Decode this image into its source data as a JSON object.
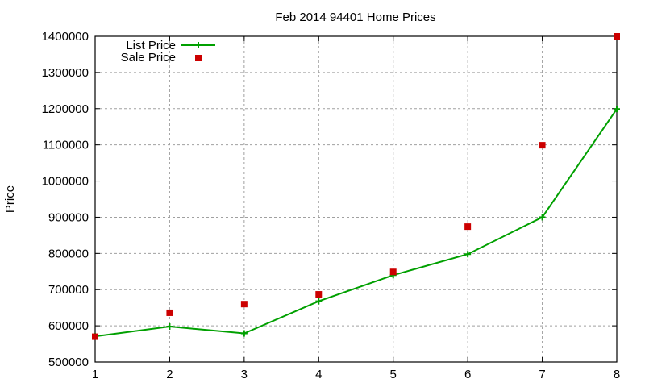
{
  "chart_data": {
    "type": "line",
    "title": "Feb 2014 94401 Home Prices",
    "xlabel": "",
    "ylabel": "Price",
    "x": [
      1,
      2,
      3,
      4,
      5,
      6,
      7,
      8
    ],
    "xlim": [
      1,
      8
    ],
    "ylim": [
      500000,
      1400000
    ],
    "xticks": [
      "1",
      "2",
      "3",
      "4",
      "5",
      "6",
      "7",
      "8"
    ],
    "yticks": [
      "500000",
      "600000",
      "700000",
      "800000",
      "900000",
      "1000000",
      "1100000",
      "1200000",
      "1300000",
      "1400000"
    ],
    "grid": true,
    "legend_position": "top-left",
    "series": [
      {
        "name": "List Price",
        "style": "linespoints",
        "marker": "plus",
        "color": "#00a000",
        "values": [
          571000,
          598000,
          579000,
          668000,
          740000,
          798000,
          900000,
          1199000
        ]
      },
      {
        "name": "Sale Price",
        "style": "points",
        "marker": "filled-square",
        "color": "#cc0000",
        "values": [
          570000,
          636000,
          660000,
          687000,
          749000,
          874000,
          1099000,
          1400000
        ]
      }
    ]
  }
}
